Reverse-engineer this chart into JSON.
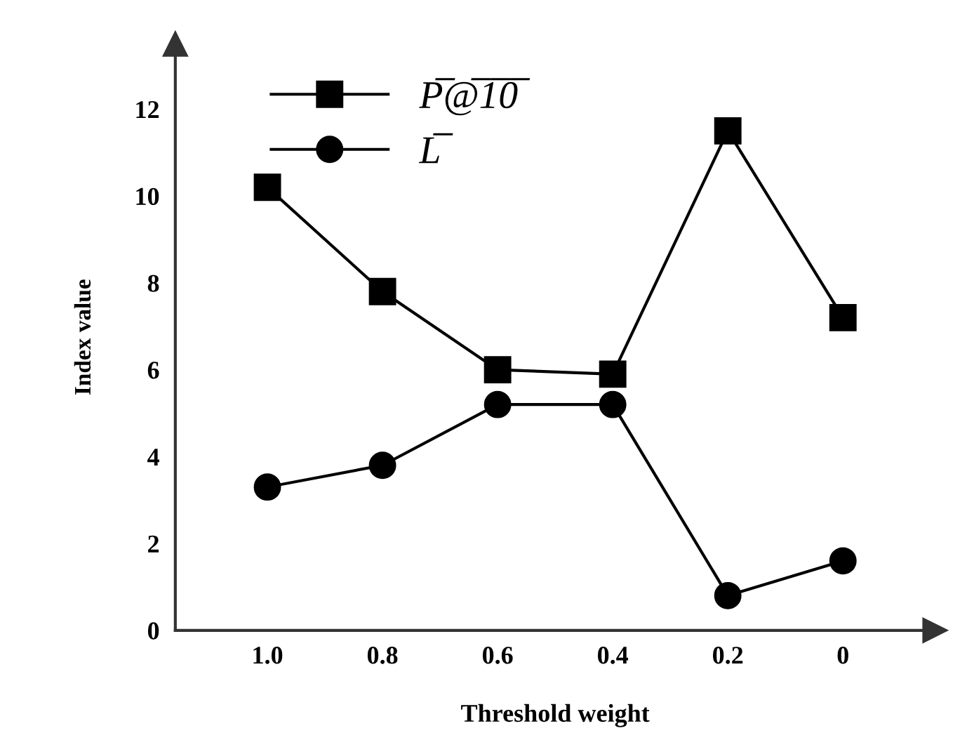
{
  "chart_data": {
    "type": "line",
    "xlabel": "Threshold weight",
    "ylabel": "Index value",
    "categories": [
      "1.0",
      "0.8",
      "0.6",
      "0.4",
      "0.2",
      "0"
    ],
    "series": [
      {
        "name": "P̅@̅1̅0̅",
        "color": "#000000",
        "marker": "square",
        "values": [
          10.2,
          7.8,
          6.0,
          5.9,
          11.5,
          7.2
        ]
      },
      {
        "name": "L̅",
        "color": "#000000",
        "marker": "circle",
        "values": [
          3.3,
          3.8,
          5.2,
          5.2,
          0.8,
          1.6
        ]
      }
    ],
    "ylim": [
      0,
      13.5
    ],
    "yticks": [
      0,
      2,
      4,
      6,
      8,
      10,
      12
    ],
    "grid": false,
    "legend": "top left",
    "line_style": "solid"
  }
}
